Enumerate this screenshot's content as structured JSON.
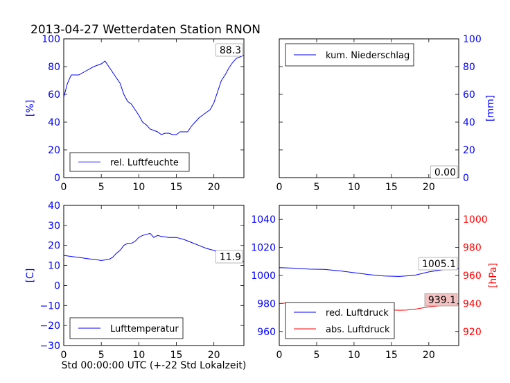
{
  "title": "2013-04-27 Wetterdaten Station RNON",
  "xlabel": "Std 00:00:00 UTC (+-22 Std Lokalzeit)",
  "colors": {
    "blue": "#0000ff",
    "red": "#ff0000",
    "annot_red_bg": "#f4c2c2"
  },
  "chart_data": [
    {
      "id": "humidity",
      "type": "line",
      "xlim": [
        0,
        24
      ],
      "ylim": [
        0,
        100
      ],
      "xticks": [
        0,
        5,
        10,
        15,
        20
      ],
      "yticks": [
        0,
        20,
        40,
        60,
        80,
        100
      ],
      "ylabel": "[%]",
      "ylabel_side": "left",
      "legend_location": "lower-left",
      "annotation": "88.3",
      "series": [
        {
          "name": "rel. Luftfeuchte",
          "color": "#0000ff",
          "x": [
            0,
            0.5,
            1,
            1.5,
            2,
            3,
            4,
            5,
            5.5,
            6,
            6.5,
            7,
            7.5,
            8,
            8.5,
            9,
            9.5,
            10,
            10.5,
            11,
            11.5,
            12,
            12.5,
            13,
            13.5,
            14,
            14.5,
            15,
            15.5,
            16,
            16.5,
            17,
            17.5,
            18,
            18.5,
            19,
            19.5,
            20,
            20.5,
            21,
            21.5,
            22,
            22.5,
            23,
            23.5,
            24
          ],
          "y": [
            58,
            68,
            74,
            74,
            74,
            77,
            80,
            82,
            84,
            80,
            76,
            72,
            68,
            60,
            55,
            53,
            49,
            45,
            40,
            38,
            35,
            34,
            33,
            31,
            32,
            32,
            31,
            31,
            33,
            33,
            33,
            37,
            40,
            43,
            45,
            47,
            49,
            54,
            62,
            70,
            74,
            79,
            83,
            86,
            87,
            88.3
          ]
        }
      ]
    },
    {
      "id": "precipitation",
      "type": "line",
      "xlim": [
        0,
        24
      ],
      "ylim": [
        0,
        100
      ],
      "xticks": [
        0,
        5,
        10,
        15,
        20
      ],
      "yticks": [
        0,
        20,
        40,
        60,
        80,
        100
      ],
      "ylabel": "[mm]",
      "ylabel_side": "right",
      "legend_location": "upper-left",
      "annotation": "0.00",
      "series": [
        {
          "name": "kum. Niederschlag",
          "color": "#0000ff",
          "x": [
            0,
            24
          ],
          "y": [
            0,
            0
          ]
        }
      ]
    },
    {
      "id": "temperature",
      "type": "line",
      "xlim": [
        0,
        24
      ],
      "ylim": [
        -30,
        40
      ],
      "xticks": [
        0,
        5,
        10,
        15,
        20
      ],
      "yticks": [
        -30,
        -20,
        -10,
        0,
        10,
        20,
        30,
        40
      ],
      "ylabel": "[C]",
      "ylabel_side": "left",
      "legend_location": "lower-left",
      "annotation": "11.9",
      "series": [
        {
          "name": "Lufttemperatur",
          "color": "#0000ff",
          "x": [
            0,
            1,
            2,
            3,
            4,
            5,
            6,
            6.5,
            7,
            7.5,
            8,
            8.5,
            9,
            9.5,
            10,
            10.5,
            11,
            11.5,
            12,
            12.5,
            13,
            14,
            15,
            16,
            17,
            18,
            19,
            20,
            21,
            22,
            23,
            24
          ],
          "y": [
            15,
            14.5,
            14,
            13.5,
            13,
            12.5,
            13,
            14,
            16,
            17.5,
            20,
            21,
            21,
            22,
            24,
            25,
            25.5,
            26,
            24,
            25,
            24.5,
            24,
            24,
            23,
            21.5,
            20,
            18.5,
            17.5,
            16,
            14.5,
            13,
            11.9
          ]
        }
      ]
    },
    {
      "id": "pressure",
      "type": "line",
      "xlim": [
        0,
        24
      ],
      "ylim": [
        950,
        1050
      ],
      "xticks": [
        0,
        5,
        10,
        15,
        20
      ],
      "yticks": [
        960,
        980,
        1000,
        1020,
        1040
      ],
      "ylim_right": [
        910,
        1010
      ],
      "yticks_right": [
        920,
        940,
        960,
        980,
        1000
      ],
      "ylabel_right": "[hPa]",
      "legend_location": "lower-left",
      "annotations": [
        "1005.1",
        "939.1"
      ],
      "series": [
        {
          "name": "red. Luftdruck",
          "color": "#0000ff",
          "axis": "left",
          "x": [
            0,
            2,
            4,
            6,
            8,
            10,
            12,
            14,
            16,
            18,
            20,
            22,
            24
          ],
          "y": [
            1005.6,
            1005.2,
            1004.5,
            1004.3,
            1003.3,
            1002.0,
            1000.6,
            999.6,
            999.3,
            1000.0,
            1002.5,
            1004.2,
            1005.1
          ]
        },
        {
          "name": "abs. Luftdruck",
          "color": "#ff0000",
          "axis": "right",
          "x": [
            0,
            1,
            2,
            4,
            6,
            8,
            10,
            12,
            14,
            16,
            17,
            18,
            20,
            22,
            24
          ],
          "y": [
            940,
            940.3,
            939.5,
            938.5,
            938.5,
            938.6,
            938.1,
            936.6,
            935.6,
            935.2,
            935.3,
            935.8,
            937.6,
            938.6,
            939.1
          ]
        }
      ]
    }
  ]
}
